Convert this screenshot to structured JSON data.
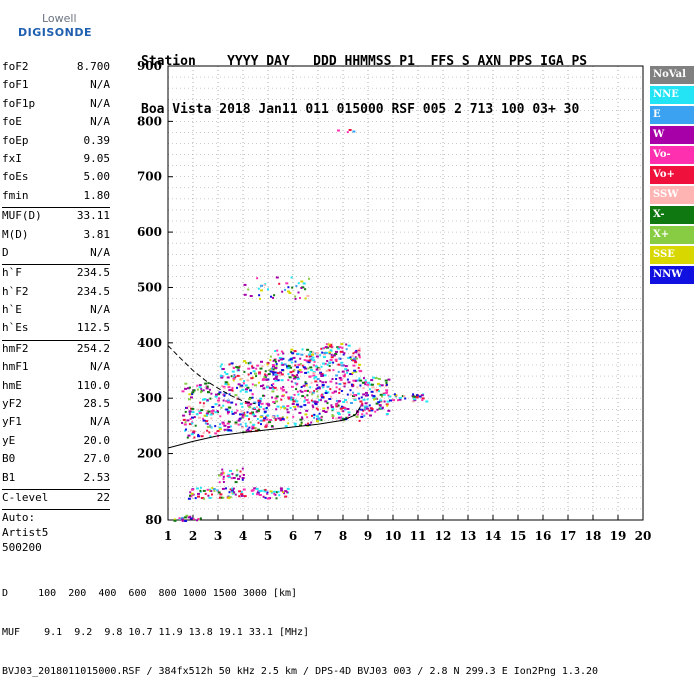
{
  "logo": {
    "lowell": "Lowell",
    "digisonde": "DIGISONDE"
  },
  "header": {
    "line1": "Station    YYYY DAY   DDD HHMMSS P1  FFS S AXN PPS IGA PS",
    "line2": "Boa Vista 2018 Jan11 011 015000 RSF 005 2 713 100 03+ 30"
  },
  "params": [
    {
      "k": "foF2",
      "v": "8.700"
    },
    {
      "k": "foF1",
      "v": "N/A"
    },
    {
      "k": "foF1p",
      "v": "N/A"
    },
    {
      "k": "foE",
      "v": "N/A"
    },
    {
      "k": "foEp",
      "v": "0.39"
    },
    {
      "k": "fxI",
      "v": "9.05"
    },
    {
      "k": "foEs",
      "v": "5.00"
    },
    {
      "k": "fmin",
      "v": "1.80"
    },
    {
      "sep": true
    },
    {
      "k": "MUF(D)",
      "v": "33.11"
    },
    {
      "k": "M(D)",
      "v": "3.81"
    },
    {
      "k": "D",
      "v": "N/A"
    },
    {
      "sep": true
    },
    {
      "k": "h`F",
      "v": "234.5"
    },
    {
      "k": "h`F2",
      "v": "234.5"
    },
    {
      "k": "h`E",
      "v": "N/A"
    },
    {
      "k": "h`Es",
      "v": "112.5"
    },
    {
      "sep": true
    },
    {
      "k": "hmF2",
      "v": "254.2"
    },
    {
      "k": "hmF1",
      "v": "N/A"
    },
    {
      "k": "hmE",
      "v": "110.0"
    },
    {
      "k": "yF2",
      "v": "28.5"
    },
    {
      "k": "yF1",
      "v": "N/A"
    },
    {
      "k": "yE",
      "v": "20.0"
    },
    {
      "k": "B0",
      "v": "27.0"
    },
    {
      "k": "B1",
      "v": "2.53"
    },
    {
      "sep": true
    },
    {
      "k": "C-level",
      "v": "22"
    },
    {
      "sep": true
    },
    {
      "t": "Auto:"
    },
    {
      "t": "Artist5"
    },
    {
      "t": "500200"
    }
  ],
  "legend": [
    {
      "label": "NoVal",
      "color": "#808080"
    },
    {
      "label": "NNE",
      "color": "#22e4f4"
    },
    {
      "label": "E",
      "color": "#3aa2f0"
    },
    {
      "label": "W",
      "color": "#a800a8"
    },
    {
      "label": "Vo-",
      "color": "#ff30b0"
    },
    {
      "label": "Vo+",
      "color": "#f0103c"
    },
    {
      "label": "SSW",
      "color": "#ffb4b4"
    },
    {
      "label": "X-",
      "color": "#107810"
    },
    {
      "label": "X+",
      "color": "#88cc44"
    },
    {
      "label": "SSE",
      "color": "#d8d800"
    },
    {
      "label": "NNW",
      "color": "#1010e0"
    }
  ],
  "bottom": {
    "d_line": "D     100  200  400  600  800 1000 1500 3000 [km]",
    "muf_line": "MUF    9.1  9.2  9.8 10.7 11.9 13.8 19.1 33.1 [MHz]",
    "file_line": "BVJ03_2018011015000.RSF / 384fx512h 50 kHz 2.5 km / DPS-4D BVJ03 003 / 2.8 N 299.3 E Ion2Png 1.3.20"
  },
  "chart_data": {
    "type": "scatter",
    "xlim": [
      1,
      20
    ],
    "ylim": [
      80,
      900
    ],
    "x_ticks": [
      1,
      2,
      3,
      4,
      5,
      6,
      7,
      8,
      9,
      10,
      11,
      12,
      13,
      14,
      15,
      16,
      17,
      18,
      19,
      20
    ],
    "y_ticks": [
      80,
      200,
      300,
      400,
      500,
      600,
      700,
      800,
      900
    ],
    "grid": true,
    "legend_position": "right",
    "profile_curve": [
      [
        1.0,
        210
      ],
      [
        2.0,
        222
      ],
      [
        3.0,
        232
      ],
      [
        4.0,
        238
      ],
      [
        5.0,
        243
      ],
      [
        6.0,
        248
      ],
      [
        7.0,
        253
      ],
      [
        8.0,
        260
      ],
      [
        8.5,
        270
      ],
      [
        8.7,
        285
      ]
    ],
    "dashed_curve": [
      [
        1.0,
        395
      ],
      [
        1.5,
        372
      ],
      [
        2.0,
        350
      ],
      [
        2.5,
        332
      ],
      [
        3.0,
        318
      ],
      [
        3.5,
        305
      ],
      [
        4.0,
        295
      ],
      [
        4.5,
        290
      ]
    ],
    "trace_clusters": [
      {
        "x": [
          1.5,
          3.0
        ],
        "y": [
          230,
          330
        ],
        "n": 120
      },
      {
        "x": [
          3.0,
          5.0
        ],
        "y": [
          240,
          370
        ],
        "n": 260
      },
      {
        "x": [
          5.0,
          7.0
        ],
        "y": [
          250,
          390
        ],
        "n": 280
      },
      {
        "x": [
          7.0,
          8.7
        ],
        "y": [
          260,
          400
        ],
        "n": 240
      },
      {
        "x": [
          8.7,
          9.8
        ],
        "y": [
          270,
          340
        ],
        "n": 90
      },
      {
        "x": [
          9.8,
          11.4
        ],
        "y": [
          295,
          310
        ],
        "n": 30
      },
      {
        "x": [
          4.0,
          6.6
        ],
        "y": [
          480,
          520
        ],
        "n": 40
      },
      {
        "x": [
          3.0,
          4.0
        ],
        "y": [
          150,
          175
        ],
        "n": 30
      },
      {
        "x": [
          1.7,
          5.9
        ],
        "y": [
          120,
          140
        ],
        "n": 100
      },
      {
        "x": [
          1.2,
          2.3
        ],
        "y": [
          80,
          90
        ],
        "n": 20
      },
      {
        "x": [
          7.0,
          8.6
        ],
        "y": [
          782,
          790
        ],
        "n": 4
      }
    ]
  }
}
